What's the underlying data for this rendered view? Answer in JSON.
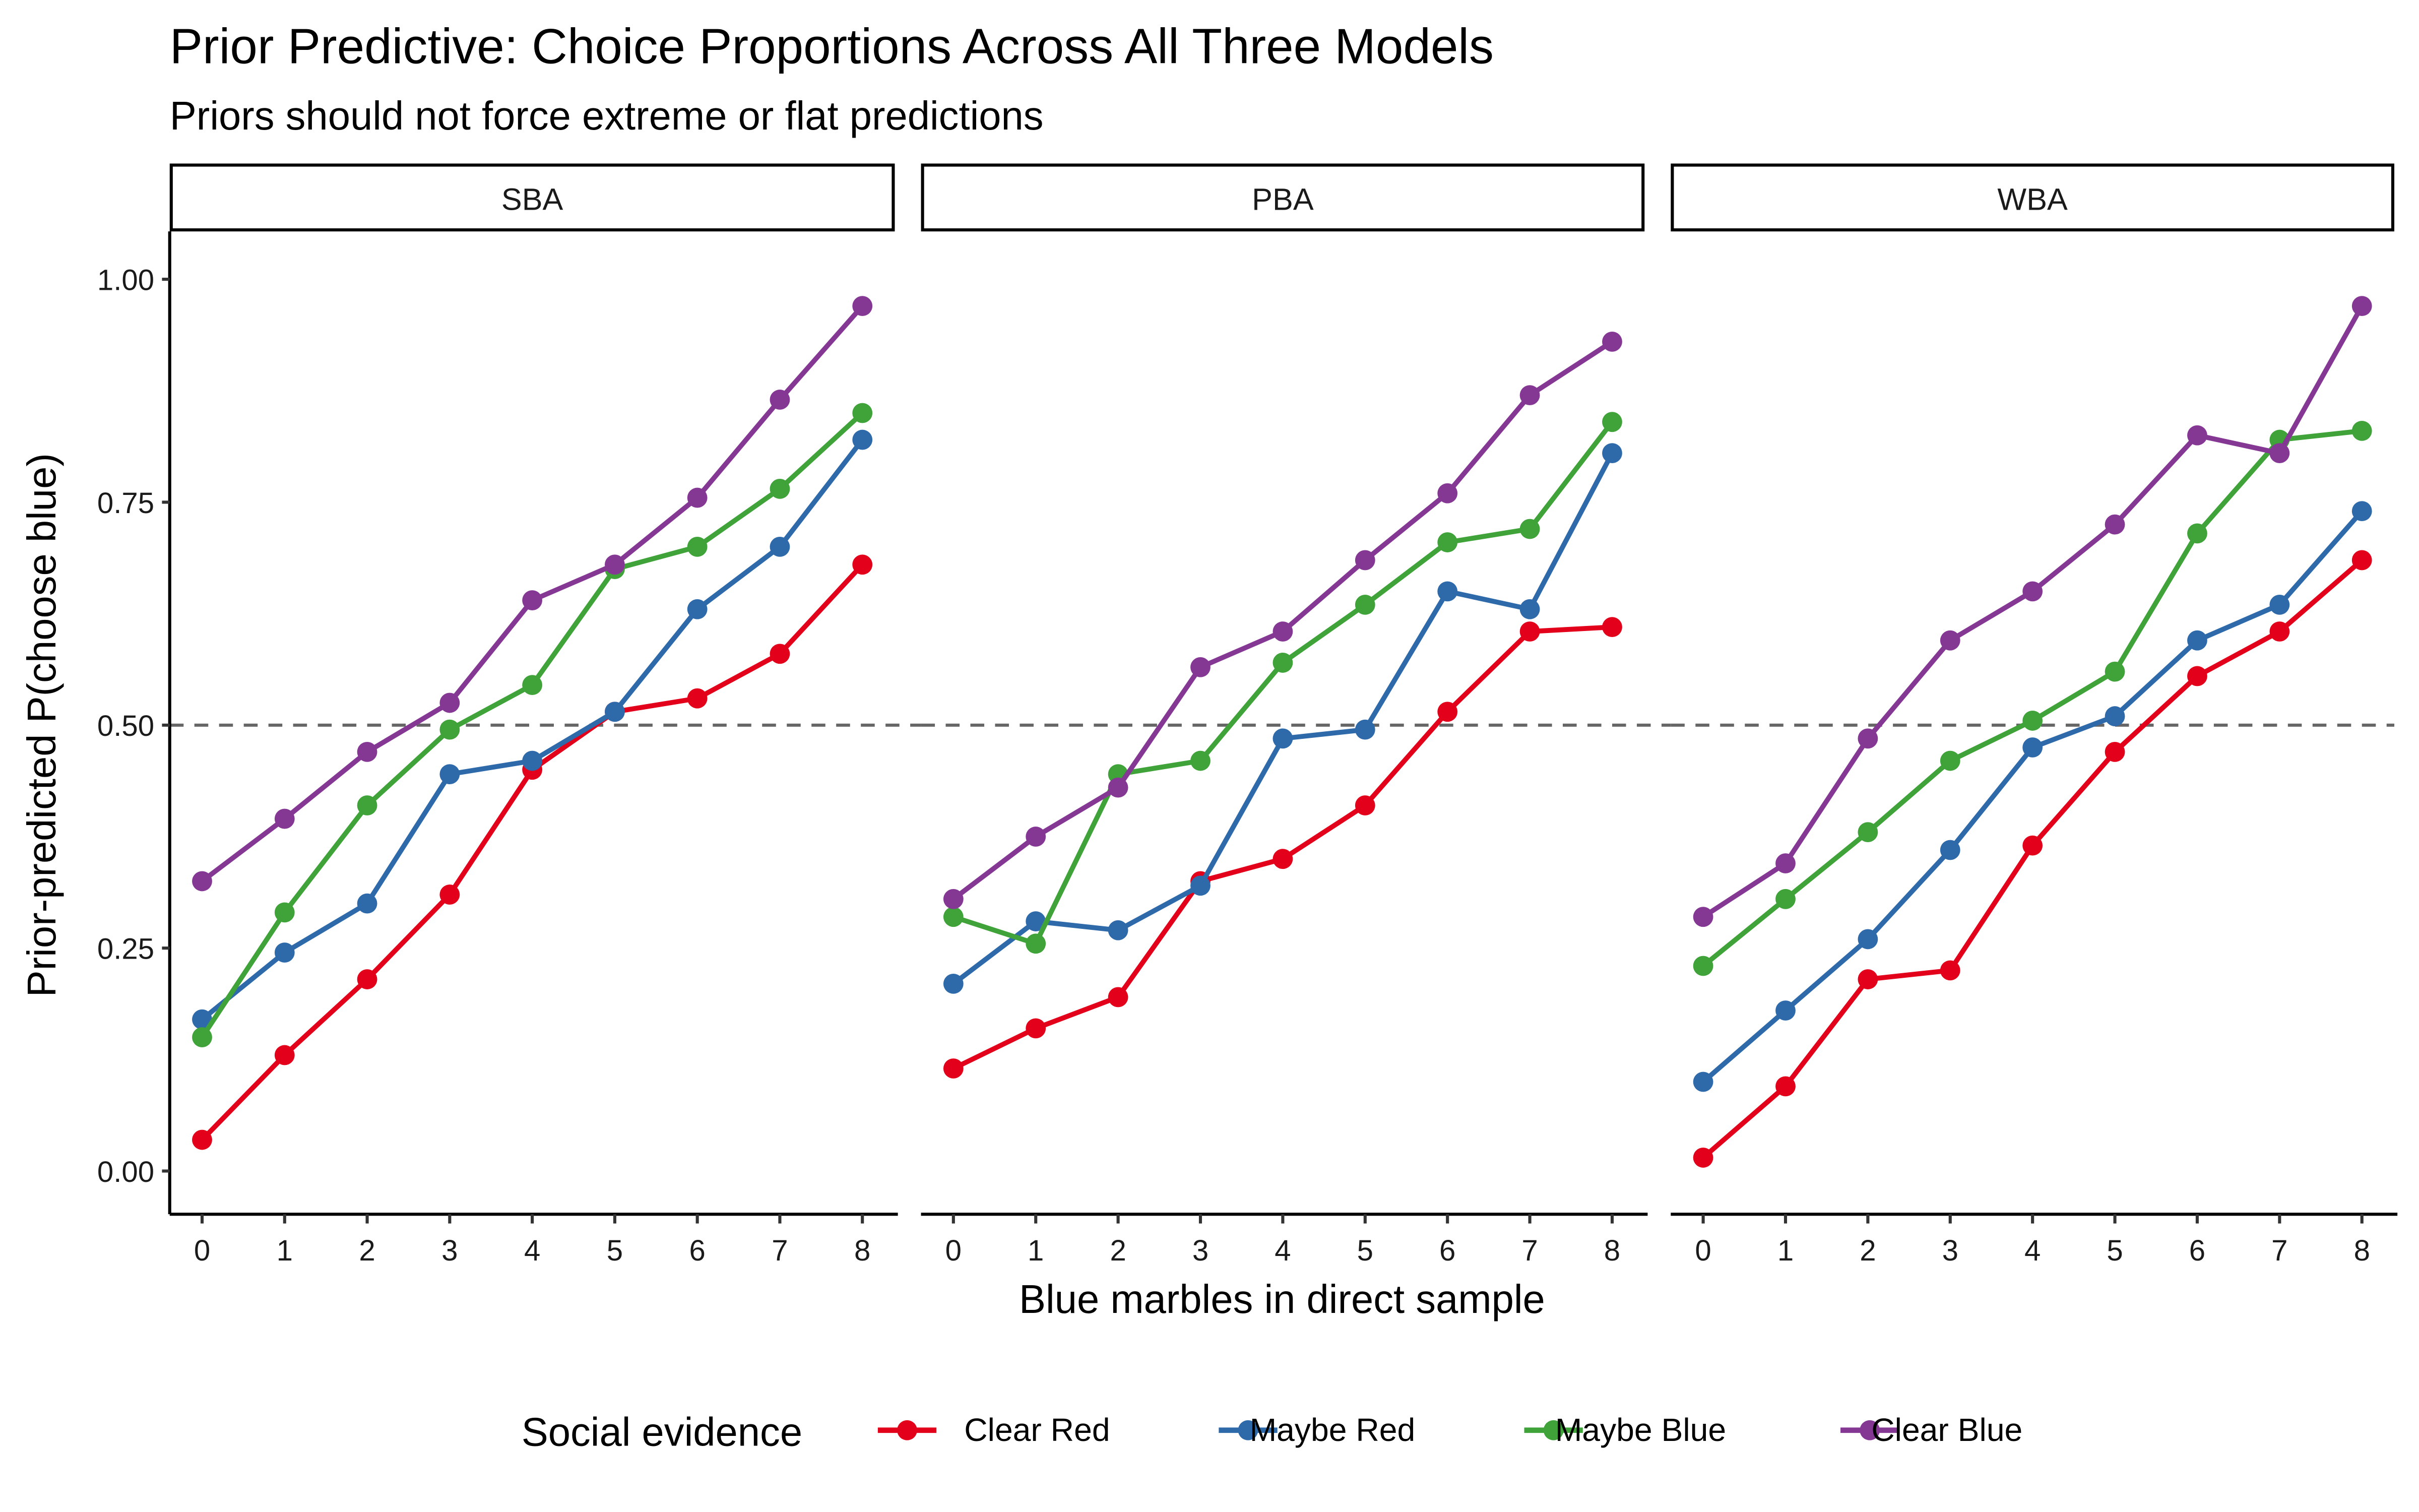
{
  "chart_data": {
    "type": "line",
    "title": "Prior Predictive: Choice Proportions Across All Three Models",
    "subtitle": "Priors should not force extreme or flat predictions",
    "xlabel": "Blue marbles in direct sample",
    "ylabel": "Prior-predicted P(choose blue)",
    "x": [
      0,
      1,
      2,
      3,
      4,
      5,
      6,
      7,
      8
    ],
    "x_tick_labels": [
      "0",
      "1",
      "2",
      "3",
      "4",
      "5",
      "6",
      "7",
      "8"
    ],
    "ylim": [
      -0.05,
      1.05
    ],
    "y_ticks": [
      0,
      0.25,
      0.5,
      0.75,
      1.0
    ],
    "y_tick_labels": [
      "0.00",
      "0.25",
      "0.50",
      "0.75",
      "1.00"
    ],
    "reference_line": {
      "y": 0.5,
      "style": "dashed",
      "color": "#666666"
    },
    "grid": false,
    "legend": {
      "title": "Social evidence",
      "placement": "bottom",
      "entries": [
        {
          "name": "Clear Red",
          "color": "#E3001B"
        },
        {
          "name": "Maybe Red",
          "color": "#2E6AAA"
        },
        {
          "name": "Maybe Blue",
          "color": "#3FA33A"
        },
        {
          "name": "Clear Blue",
          "color": "#843894"
        }
      ]
    },
    "panels": [
      {
        "label": "SBA",
        "series": [
          {
            "name": "Clear Red",
            "values": [
              0.035,
              0.13,
              0.215,
              0.31,
              0.45,
              0.515,
              0.53,
              0.58,
              0.68
            ]
          },
          {
            "name": "Maybe Red",
            "values": [
              0.17,
              0.245,
              0.3,
              0.445,
              0.46,
              0.515,
              0.63,
              0.7,
              0.82
            ]
          },
          {
            "name": "Maybe Blue",
            "values": [
              0.15,
              0.29,
              0.41,
              0.495,
              0.545,
              0.675,
              0.7,
              0.765,
              0.85
            ]
          },
          {
            "name": "Clear Blue",
            "values": [
              0.325,
              0.395,
              0.47,
              0.525,
              0.64,
              0.68,
              0.755,
              0.865,
              0.97
            ]
          }
        ]
      },
      {
        "label": "PBA",
        "series": [
          {
            "name": "Clear Red",
            "values": [
              0.115,
              0.16,
              0.195,
              0.325,
              0.35,
              0.41,
              0.515,
              0.605,
              0.61
            ]
          },
          {
            "name": "Maybe Red",
            "values": [
              0.21,
              0.28,
              0.27,
              0.32,
              0.485,
              0.495,
              0.65,
              0.63,
              0.805
            ]
          },
          {
            "name": "Maybe Blue",
            "values": [
              0.285,
              0.255,
              0.445,
              0.46,
              0.57,
              0.635,
              0.705,
              0.72,
              0.84
            ]
          },
          {
            "name": "Clear Blue",
            "values": [
              0.305,
              0.375,
              0.43,
              0.565,
              0.605,
              0.685,
              0.76,
              0.87,
              0.93
            ]
          }
        ]
      },
      {
        "label": "WBA",
        "series": [
          {
            "name": "Clear Red",
            "values": [
              0.015,
              0.095,
              0.215,
              0.225,
              0.365,
              0.47,
              0.555,
              0.605,
              0.685
            ]
          },
          {
            "name": "Maybe Red",
            "values": [
              0.1,
              0.18,
              0.26,
              0.36,
              0.475,
              0.51,
              0.595,
              0.635,
              0.74
            ]
          },
          {
            "name": "Maybe Blue",
            "values": [
              0.23,
              0.305,
              0.38,
              0.46,
              0.505,
              0.56,
              0.715,
              0.82,
              0.83
            ]
          },
          {
            "name": "Clear Blue",
            "values": [
              0.285,
              0.345,
              0.485,
              0.595,
              0.65,
              0.725,
              0.825,
              0.805,
              0.97
            ]
          }
        ]
      }
    ]
  }
}
